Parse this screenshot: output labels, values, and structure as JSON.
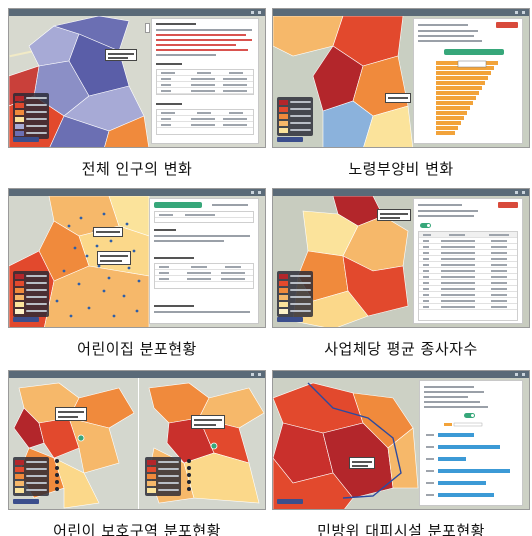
{
  "figures": [
    {
      "id": "total-population",
      "caption": "전체 인구의 변화"
    },
    {
      "id": "elderly-dependency",
      "caption": "노령부양비 변화"
    },
    {
      "id": "daycare-distribution",
      "caption": "어린이집 분포현황"
    },
    {
      "id": "business-employees",
      "caption": "사업체당 평균 종사자수"
    },
    {
      "id": "child-protection-zone",
      "caption": "어린이 보호구역 분포현황"
    },
    {
      "id": "civil-defense-shelter",
      "caption": "민방위 대피시설 분포현황"
    }
  ],
  "colors": {
    "choropleth_dark_red": "#b3262b",
    "choropleth_red": "#e2492d",
    "choropleth_orange": "#f08a3c",
    "choropleth_light_orange": "#f6b86a",
    "choropleth_yellow": "#fbe39b",
    "choropleth_purple": "#6b6fb3",
    "choropleth_light_purple": "#a7aad6",
    "accent_green": "#37a77a",
    "accent_red": "#d84a3b",
    "chart_bar_orange": "#f2a33a",
    "chart_bar_blue": "#3c9ad6"
  },
  "icons": [
    "dots-menu-icon",
    "zoom-control-icon"
  ]
}
